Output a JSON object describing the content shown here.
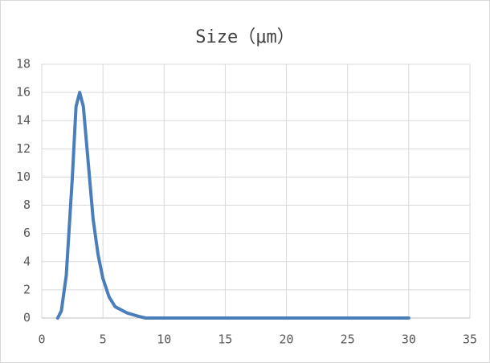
{
  "chart_data": {
    "type": "line",
    "title": "Size（μm）",
    "x": [
      1.3,
      1.6,
      2.0,
      2.5,
      2.8,
      3.1,
      3.4,
      3.8,
      4.2,
      4.6,
      5.0,
      5.5,
      6.0,
      7.0,
      8.0,
      8.5,
      30
    ],
    "series": [
      {
        "name": "Size",
        "color": "#4a7ebb",
        "values": [
          0,
          0.5,
          3,
          10,
          15,
          16,
          15,
          11,
          7,
          4.5,
          2.8,
          1.5,
          0.8,
          0.35,
          0.1,
          0,
          0
        ]
      }
    ],
    "xlim": [
      0,
      35
    ],
    "xticks": [
      0,
      5,
      10,
      15,
      20,
      25,
      30,
      35
    ],
    "ylim": [
      0,
      18
    ],
    "yticks": [
      0,
      2,
      4,
      6,
      8,
      10,
      12,
      14,
      16,
      18
    ],
    "grid": true
  }
}
